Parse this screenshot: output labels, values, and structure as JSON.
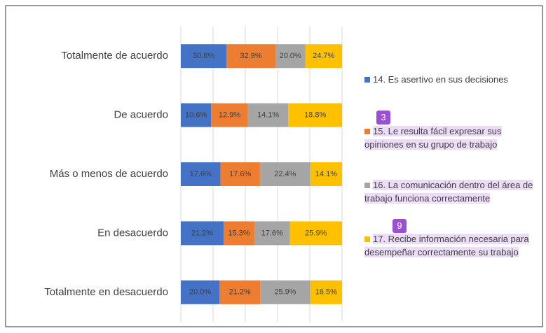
{
  "chart_data": {
    "type": "stacked_bar_100",
    "categories": [
      "Totalmente de acuerdo",
      "De acuerdo",
      "Más o menos de acuerdo",
      "En desacuerdo",
      "Totalmente en desacuerdo"
    ],
    "series": [
      {
        "name": "14. Es asertivo en sus decisiones",
        "color": "#4472c4",
        "values": [
          30.6,
          10.6,
          17.6,
          21.2,
          20.0
        ],
        "value_labels": [
          "30.6%",
          "10.6%",
          "17.6%",
          "21.2%",
          "20.0%"
        ]
      },
      {
        "name": "15. Le resulta fácil expresar sus opiniones en su grupo de trabajo",
        "color": "#ed7d31",
        "values": [
          32.9,
          12.9,
          17.6,
          15.3,
          21.2
        ],
        "value_labels": [
          "32.9%",
          "12.9%",
          "17.6%",
          "15.3%",
          "21.2%"
        ]
      },
      {
        "name": "16. La comunicación dentro del área de trabajo funciona correctamente",
        "color": "#a5a5a5",
        "values": [
          20.0,
          14.1,
          22.4,
          17.6,
          25.9
        ],
        "value_labels": [
          "20.0%",
          "14.1%",
          "22.4%",
          "17.6%",
          "25.9%"
        ]
      },
      {
        "name": "17. Recibe información necesaria para desempeñar correctamente su trabajo",
        "color": "#ffc000",
        "values": [
          24.7,
          18.8,
          14.1,
          25.9,
          16.5
        ],
        "value_labels": [
          "24.7%",
          "18.8%",
          "14.1%",
          "25.9%",
          "16.5%"
        ]
      }
    ],
    "xlim": [
      0,
      100
    ],
    "xticks": [
      0,
      20,
      40,
      60,
      80,
      100
    ],
    "grid": true,
    "legend": "right",
    "annotations": [
      "3",
      "9"
    ]
  }
}
